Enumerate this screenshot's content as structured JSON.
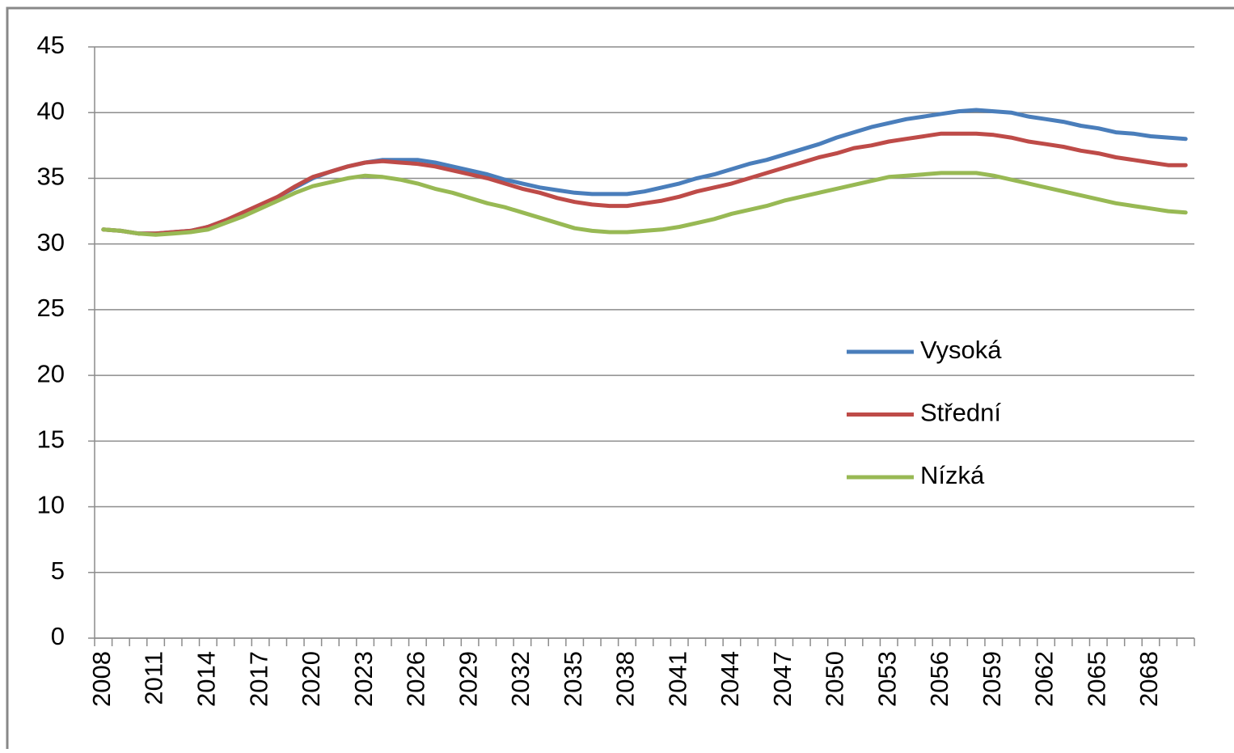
{
  "chart_data": {
    "type": "line",
    "categories": [
      "2008",
      null,
      null,
      "2011",
      null,
      null,
      "2014",
      null,
      null,
      "2017",
      null,
      null,
      "2020",
      null,
      null,
      "2023",
      null,
      null,
      "2026",
      null,
      null,
      "2029",
      null,
      null,
      "2032",
      null,
      null,
      "2035",
      null,
      null,
      "2038",
      null,
      null,
      "2041",
      null,
      null,
      "2044",
      null,
      null,
      "2047",
      null,
      null,
      "2050",
      null,
      null,
      "2053",
      null,
      null,
      "2056",
      null,
      null,
      "2059",
      null,
      null,
      "2062",
      null,
      null,
      "2065",
      null,
      null,
      "2068",
      null,
      null
    ],
    "series": [
      {
        "name": "Vysoká",
        "color": "#4a7ebb",
        "values": [
          31.1,
          31.0,
          30.8,
          30.8,
          30.9,
          31.0,
          31.3,
          31.8,
          32.3,
          32.9,
          33.6,
          34.3,
          35.0,
          35.5,
          35.9,
          36.2,
          36.4,
          36.4,
          36.4,
          36.2,
          35.9,
          35.6,
          35.3,
          34.9,
          34.6,
          34.3,
          34.1,
          33.9,
          33.8,
          33.8,
          33.8,
          34.0,
          34.3,
          34.6,
          35.0,
          35.3,
          35.7,
          36.1,
          36.4,
          36.8,
          37.2,
          37.6,
          38.1,
          38.5,
          38.9,
          39.2,
          39.5,
          39.7,
          39.9,
          40.1,
          40.2,
          40.1,
          40.0,
          39.7,
          39.5,
          39.3,
          39.0,
          38.8,
          38.5,
          38.4,
          38.2,
          38.1,
          38.0
        ]
      },
      {
        "name": "Střední",
        "color": "#be4b48",
        "values": [
          31.1,
          31.0,
          30.8,
          30.8,
          30.9,
          31.0,
          31.3,
          31.8,
          32.4,
          33.0,
          33.6,
          34.4,
          35.1,
          35.5,
          35.9,
          36.2,
          36.3,
          36.2,
          36.1,
          35.9,
          35.6,
          35.3,
          35.0,
          34.6,
          34.2,
          33.9,
          33.5,
          33.2,
          33.0,
          32.9,
          32.9,
          33.1,
          33.3,
          33.6,
          34.0,
          34.3,
          34.6,
          35.0,
          35.4,
          35.8,
          36.2,
          36.6,
          36.9,
          37.3,
          37.5,
          37.8,
          38.0,
          38.2,
          38.4,
          38.4,
          38.4,
          38.3,
          38.1,
          37.8,
          37.6,
          37.4,
          37.1,
          36.9,
          36.6,
          36.4,
          36.2,
          36.0,
          36.0
        ]
      },
      {
        "name": "Nízká",
        "color": "#98b954",
        "values": [
          31.1,
          31.0,
          30.8,
          30.7,
          30.8,
          30.9,
          31.1,
          31.6,
          32.1,
          32.7,
          33.3,
          33.9,
          34.4,
          34.7,
          35.0,
          35.2,
          35.1,
          34.9,
          34.6,
          34.2,
          33.9,
          33.5,
          33.1,
          32.8,
          32.4,
          32.0,
          31.6,
          31.2,
          31.0,
          30.9,
          30.9,
          31.0,
          31.1,
          31.3,
          31.6,
          31.9,
          32.3,
          32.6,
          32.9,
          33.3,
          33.6,
          33.9,
          34.2,
          34.5,
          34.8,
          35.1,
          35.2,
          35.3,
          35.4,
          35.4,
          35.4,
          35.2,
          34.9,
          34.6,
          34.3,
          34.0,
          33.7,
          33.4,
          33.1,
          32.9,
          32.7,
          32.5,
          32.4
        ]
      }
    ],
    "ylim": [
      0,
      45
    ],
    "yticks": [
      0,
      5,
      10,
      15,
      20,
      25,
      30,
      35,
      40,
      45
    ],
    "grid": true,
    "legend": "right"
  }
}
